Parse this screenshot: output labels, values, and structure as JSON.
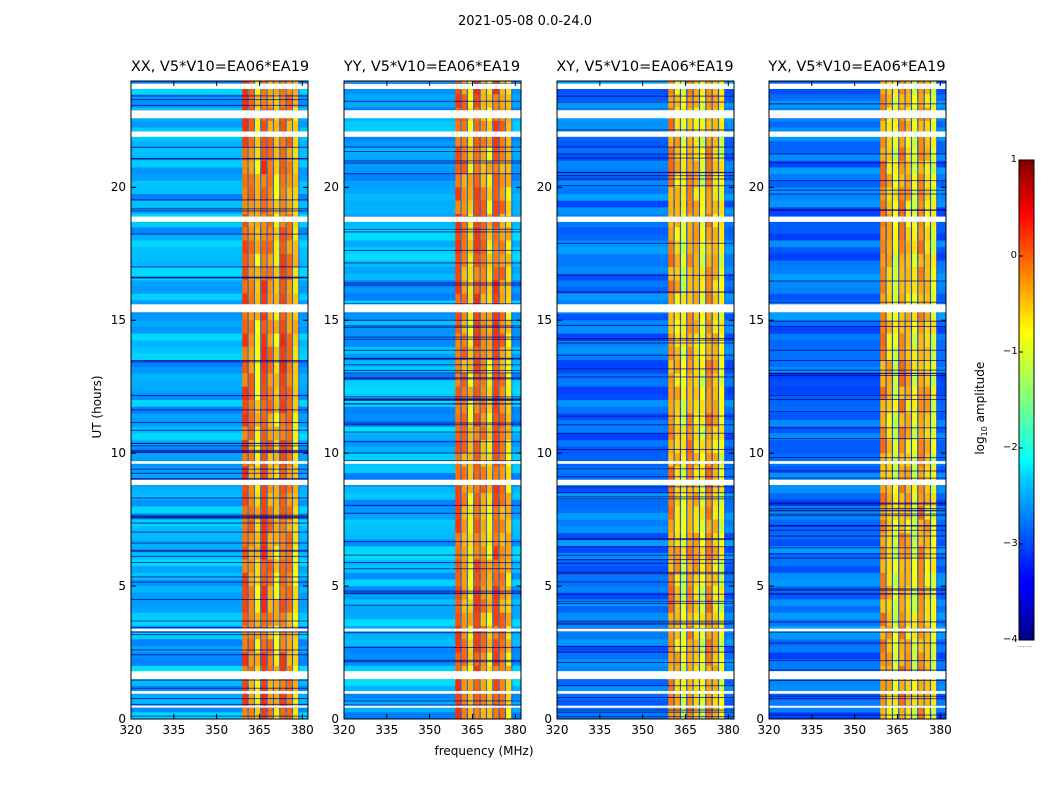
{
  "page_title": "2021-05-08 0.0-24.0",
  "chart_data": {
    "type": "heatmap",
    "xlabel": "frequency (MHz)",
    "ylabel": "UT (hours)",
    "xlim": [
      320,
      382
    ],
    "ylim": [
      0,
      24
    ],
    "xticks": [
      320,
      335,
      350,
      365,
      380
    ],
    "xtick_labels": [
      "320",
      "335",
      "350",
      "365",
      "380"
    ],
    "yticks": [
      0,
      5,
      10,
      15,
      20
    ],
    "ytick_labels": [
      "0",
      "5",
      "10",
      "15",
      "20"
    ],
    "colorbar": {
      "label": "log10 amplitude",
      "label_base": "log",
      "label_sub": "10",
      "label_rest": " amplitude",
      "colormap": "jet",
      "range": [
        -4,
        1
      ],
      "ticks": [
        1,
        0,
        -1,
        -2,
        -3,
        -4
      ],
      "tick_labels": [
        "1",
        "0",
        "−1",
        "−2",
        "−3",
        "−4"
      ],
      "caption": "......"
    },
    "panels": [
      {
        "title": "XX, V5*V10=EA06*EA19",
        "pol": "XX",
        "rfi_band_mhz": [
          359,
          379
        ],
        "rfi_level": -0.4,
        "background_level": -2.5
      },
      {
        "title": "YY, V5*V10=EA06*EA19",
        "pol": "YY",
        "rfi_band_mhz": [
          359,
          379
        ],
        "rfi_level": -0.4,
        "background_level": -2.5
      },
      {
        "title": "XY, V5*V10=EA06*EA19",
        "pol": "XY",
        "rfi_band_mhz": [
          359,
          379
        ],
        "rfi_level": -0.7,
        "background_level": -2.8
      },
      {
        "title": "YX, V5*V10=EA06*EA19",
        "pol": "YX",
        "rfi_band_mhz": [
          359,
          379
        ],
        "rfi_level": -0.7,
        "background_level": -2.8
      }
    ],
    "flagged_ut_hours": [
      [
        0.45,
        0.5
      ],
      [
        0.95,
        1.05
      ],
      [
        1.5,
        1.8
      ],
      [
        3.3,
        3.4
      ],
      [
        8.8,
        9.0
      ],
      [
        9.6,
        9.7
      ],
      [
        15.3,
        15.6
      ],
      [
        18.7,
        18.9
      ],
      [
        21.9,
        22.1
      ],
      [
        22.6,
        22.9
      ],
      [
        23.7,
        23.9
      ]
    ]
  }
}
